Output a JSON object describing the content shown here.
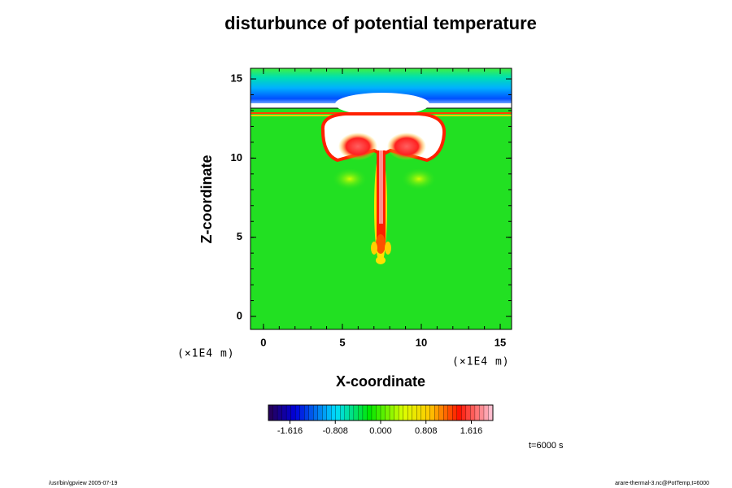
{
  "chart_data": {
    "type": "contour",
    "title": "disturbunce of potential temperature",
    "x_label": "X-coordinate",
    "y_label": "Z-coordinate",
    "x_units": "(×1E4 m)",
    "y_units": "(×1E4 m)",
    "xlim": [
      -0.82,
      15.72
    ],
    "ylim": [
      -0.82,
      15.67
    ],
    "xticks": [
      0,
      5,
      10,
      15
    ],
    "yticks": [
      0,
      5,
      10,
      15
    ],
    "colorbar": {
      "lim": [
        -2.0,
        2.0
      ],
      "ticks": [
        -1.616,
        -0.808,
        {
          "value": 0,
          "label": "0.000"
        },
        0.808,
        1.616
      ]
    },
    "time_label": "t=6000 s",
    "footer_left": "/usr/bin/gpview 2005-07-19",
    "footer_right": "arare-thermal-3.nc@PotTemp,t=6000"
  }
}
